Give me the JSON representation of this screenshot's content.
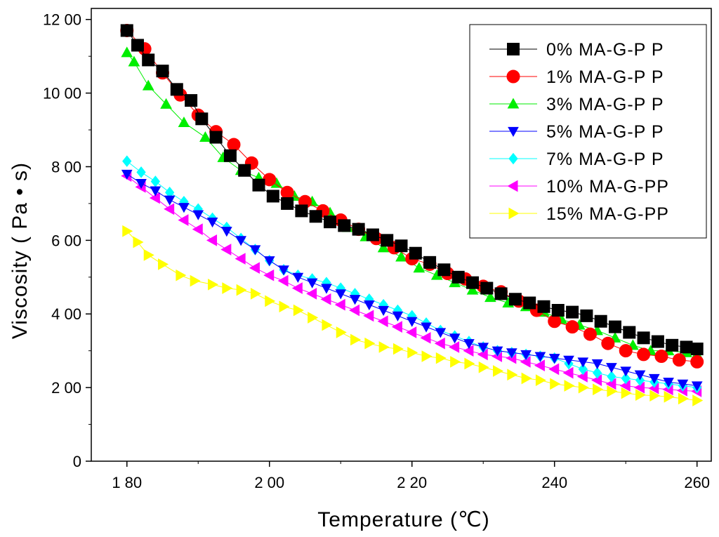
{
  "chart_data": {
    "type": "scatter",
    "title": "",
    "xlabel": "Temperature (℃)",
    "ylabel": "Viscosity ( Pa • s)",
    "xlim": [
      175,
      262
    ],
    "ylim": [
      0,
      1230
    ],
    "xticks": [
      180,
      200,
      220,
      240,
      260
    ],
    "xtick_labels": [
      "1 80",
      "2 00",
      "2 20",
      "240",
      "260"
    ],
    "yticks": [
      0,
      200,
      400,
      600,
      800,
      1000,
      1200
    ],
    "ytick_labels": [
      "0",
      "2 00",
      "4 00",
      "6 00",
      "8 00",
      "10 00",
      "12 00"
    ],
    "legend_position": "top-right",
    "series": [
      {
        "name": "0% MA-G-P P",
        "color": "#000000",
        "marker": "square",
        "x": [
          180,
          181.5,
          183,
          185,
          187,
          189,
          190.5,
          192.5,
          194.5,
          196.5,
          198.5,
          200.5,
          202.5,
          204.5,
          206.5,
          208.5,
          210.5,
          212.5,
          214.5,
          216.5,
          218.5,
          220.5,
          222.5,
          224.5,
          226.5,
          228.5,
          230.5,
          232.5,
          234.5,
          236.5,
          238.5,
          240.5,
          242.5,
          244.5,
          246.5,
          248.5,
          250.5,
          252.5,
          254.5,
          256.5,
          258.5,
          260
        ],
        "y": [
          1170,
          1130,
          1090,
          1060,
          1010,
          980,
          930,
          880,
          830,
          790,
          750,
          720,
          700,
          680,
          665,
          650,
          640,
          630,
          615,
          600,
          585,
          565,
          540,
          520,
          500,
          485,
          470,
          455,
          440,
          430,
          420,
          410,
          405,
          395,
          380,
          365,
          350,
          335,
          325,
          315,
          310,
          305
        ]
      },
      {
        "name": "1% MA-G-P P",
        "color": "#ff0000",
        "marker": "circle",
        "x": [
          180,
          182.5,
          185,
          187.5,
          190,
          192.5,
          195,
          197.5,
          200,
          202.5,
          205,
          207.5,
          210,
          212.5,
          215,
          217.5,
          220,
          222.5,
          225,
          227.5,
          230,
          232.5,
          235,
          237.5,
          240,
          242.5,
          245,
          247.5,
          250,
          252.5,
          255,
          257.5,
          260
        ],
        "y": [
          1170,
          1120,
          1055,
          995,
          940,
          895,
          860,
          810,
          765,
          730,
          705,
          680,
          655,
          630,
          605,
          580,
          550,
          535,
          510,
          495,
          475,
          460,
          435,
          410,
          380,
          365,
          345,
          320,
          300,
          290,
          285,
          275,
          270
        ]
      },
      {
        "name": "3% MA-G-P P",
        "color": "#00ee00",
        "marker": "triangle-up",
        "x": [
          180,
          181,
          183,
          185.5,
          188,
          191,
          193.5,
          196,
          198.5,
          201,
          203.5,
          206,
          208.5,
          211,
          213.5,
          216,
          218.5,
          221,
          223.5,
          226,
          228.5,
          231,
          233.5,
          236,
          238.5,
          241,
          243.5,
          246,
          248.5,
          251,
          253.5,
          256,
          258.5,
          260
        ],
        "y": [
          1110,
          1085,
          1020,
          970,
          920,
          880,
          825,
          790,
          770,
          755,
          720,
          705,
          675,
          635,
          610,
          580,
          555,
          525,
          505,
          485,
          465,
          445,
          430,
          420,
          405,
          385,
          370,
          355,
          335,
          315,
          300,
          300,
          295,
          290
        ]
      },
      {
        "name": "5% MA-G-P P",
        "color": "#0000ff",
        "marker": "triangle-down",
        "x": [
          180,
          182,
          184,
          186,
          188,
          190,
          192,
          194,
          196,
          198,
          200,
          202,
          204,
          206,
          208,
          210,
          212,
          214,
          216,
          218,
          220,
          222,
          224,
          226,
          228,
          230,
          232,
          234,
          236,
          238,
          240,
          242,
          244,
          246,
          248,
          250,
          252,
          254,
          256,
          258,
          260
        ],
        "y": [
          780,
          755,
          735,
          710,
          690,
          670,
          650,
          625,
          600,
          575,
          545,
          520,
          500,
          485,
          470,
          455,
          440,
          425,
          410,
          395,
          380,
          365,
          350,
          335,
          320,
          310,
          300,
          295,
          290,
          285,
          280,
          275,
          270,
          265,
          255,
          245,
          235,
          225,
          215,
          210,
          205
        ]
      },
      {
        "name": "7% MA-G-P P",
        "color": "#00ffff",
        "marker": "diamond",
        "x": [
          180,
          182,
          184,
          186,
          188,
          190,
          192,
          194,
          196,
          198,
          200,
          202,
          204,
          206,
          208,
          210,
          212,
          214,
          216,
          218,
          220,
          222,
          224,
          226,
          228,
          230,
          232,
          234,
          236,
          238,
          240,
          242,
          244,
          246,
          248,
          250,
          252,
          254,
          256,
          258,
          260
        ],
        "y": [
          815,
          785,
          760,
          730,
          705,
          685,
          660,
          635,
          605,
          575,
          545,
          520,
          505,
          495,
          485,
          470,
          455,
          440,
          425,
          410,
          395,
          375,
          355,
          340,
          325,
          310,
          300,
          295,
          290,
          285,
          280,
          265,
          250,
          240,
          230,
          225,
          220,
          215,
          210,
          205,
          200
        ]
      },
      {
        "name": "10% MA-G-PP",
        "color": "#ff00ff",
        "marker": "triangle-left",
        "x": [
          180,
          182,
          184,
          186,
          188,
          190,
          192,
          194,
          196,
          198,
          200,
          202,
          204,
          206,
          208,
          210,
          212,
          214,
          216,
          218,
          220,
          222,
          224,
          226,
          228,
          230,
          232,
          234,
          236,
          238,
          240,
          242,
          244,
          246,
          248,
          250,
          252,
          254,
          256,
          258,
          260
        ],
        "y": [
          775,
          745,
          715,
          685,
          655,
          630,
          600,
          575,
          550,
          525,
          505,
          490,
          470,
          455,
          440,
          425,
          410,
          395,
          380,
          365,
          350,
          335,
          320,
          310,
          300,
          290,
          285,
          280,
          270,
          260,
          250,
          240,
          230,
          220,
          210,
          205,
          200,
          198,
          195,
          192,
          190
        ]
      },
      {
        "name": "15% MA-G-PP",
        "color": "#ffff00",
        "marker": "triangle-right",
        "x": [
          180,
          181.5,
          183,
          185,
          187.5,
          189.5,
          192,
          194,
          196,
          198,
          200,
          202,
          204,
          206,
          208,
          210,
          212,
          214,
          216,
          218,
          220,
          222,
          224,
          226,
          228,
          230,
          232,
          234,
          236,
          238,
          240,
          242,
          244,
          246,
          248,
          250,
          252,
          254,
          256,
          258,
          260
        ],
        "y": [
          625,
          595,
          560,
          535,
          505,
          490,
          480,
          470,
          465,
          455,
          435,
          420,
          410,
          390,
          370,
          350,
          330,
          320,
          310,
          305,
          295,
          285,
          280,
          270,
          265,
          255,
          245,
          235,
          225,
          220,
          210,
          205,
          200,
          195,
          190,
          185,
          180,
          178,
          175,
          170,
          165
        ]
      }
    ]
  }
}
